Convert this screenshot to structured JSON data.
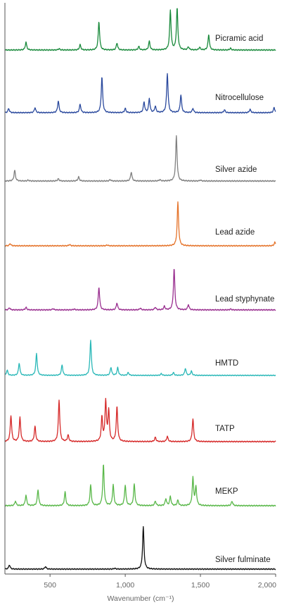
{
  "chart_data": {
    "type": "line",
    "title": "",
    "xlabel": "Wavenumber (cm⁻¹)",
    "ylabel": "",
    "xlim": [
      200,
      2000
    ],
    "xticks": [
      {
        "value": 500,
        "label": "500"
      },
      {
        "value": 1000,
        "label": "1,000"
      },
      {
        "value": 1500,
        "label": "1,500"
      },
      {
        "value": 2000,
        "label": "2,000"
      }
    ],
    "grid": false,
    "legend": "none",
    "series": [
      {
        "name": "Picramic acid",
        "color": "#1a8a3c",
        "peaks": [
          [
            340,
            0.18
          ],
          [
            560,
            0.03
          ],
          [
            700,
            0.12
          ],
          [
            825,
            0.65
          ],
          [
            945,
            0.16
          ],
          [
            1090,
            0.08
          ],
          [
            1160,
            0.2
          ],
          [
            1300,
            0.9
          ],
          [
            1345,
            0.96
          ],
          [
            1420,
            0.07
          ],
          [
            1495,
            0.06
          ],
          [
            1555,
            0.35
          ],
          [
            1700,
            0.04
          ]
        ]
      },
      {
        "name": "Nitrocellulose",
        "color": "#2b4a9e",
        "peaks": [
          [
            225,
            0.1
          ],
          [
            400,
            0.12
          ],
          [
            555,
            0.28
          ],
          [
            700,
            0.2
          ],
          [
            845,
            0.85
          ],
          [
            1000,
            0.1
          ],
          [
            1125,
            0.25
          ],
          [
            1160,
            0.33
          ],
          [
            1200,
            0.15
          ],
          [
            1280,
            0.93
          ],
          [
            1370,
            0.42
          ],
          [
            1450,
            0.1
          ],
          [
            1660,
            0.07
          ],
          [
            1830,
            0.08
          ],
          [
            1990,
            0.12
          ]
        ]
      },
      {
        "name": "Silver azide",
        "color": "#808080",
        "peaks": [
          [
            265,
            0.24
          ],
          [
            355,
            0.02
          ],
          [
            555,
            0.05
          ],
          [
            690,
            0.09
          ],
          [
            900,
            0.03
          ],
          [
            1040,
            0.2
          ],
          [
            1230,
            0.03
          ],
          [
            1340,
            1.0
          ],
          [
            1500,
            0.02
          ]
        ]
      },
      {
        "name": "Lead azide",
        "color": "#e5732a",
        "peaks": [
          [
            235,
            0.05
          ],
          [
            630,
            0.03
          ],
          [
            880,
            0.02
          ],
          [
            1350,
            1.0
          ],
          [
            1995,
            0.08
          ]
        ]
      },
      {
        "name": "Lead styphynate",
        "color": "#9a3090",
        "peaks": [
          [
            230,
            0.05
          ],
          [
            340,
            0.06
          ],
          [
            520,
            0.03
          ],
          [
            660,
            0.02
          ],
          [
            825,
            0.52
          ],
          [
            945,
            0.16
          ],
          [
            1100,
            0.04
          ],
          [
            1200,
            0.06
          ],
          [
            1260,
            0.08
          ],
          [
            1325,
            0.95
          ],
          [
            1420,
            0.12
          ],
          [
            1700,
            0.02
          ]
        ]
      },
      {
        "name": "HMTD",
        "color": "#2ab8b8",
        "peaks": [
          [
            215,
            0.15
          ],
          [
            295,
            0.35
          ],
          [
            410,
            0.62
          ],
          [
            580,
            0.3
          ],
          [
            770,
            1.0
          ],
          [
            905,
            0.23
          ],
          [
            950,
            0.22
          ],
          [
            1020,
            0.08
          ],
          [
            1240,
            0.05
          ],
          [
            1320,
            0.08
          ],
          [
            1400,
            0.2
          ],
          [
            1440,
            0.12
          ]
        ]
      },
      {
        "name": "TATP",
        "color": "#d62a2a",
        "peaks": [
          [
            240,
            0.6
          ],
          [
            300,
            0.55
          ],
          [
            400,
            0.35
          ],
          [
            560,
            0.95
          ],
          [
            620,
            0.15
          ],
          [
            845,
            0.55
          ],
          [
            870,
            0.92
          ],
          [
            890,
            0.7
          ],
          [
            945,
            0.8
          ],
          [
            1200,
            0.1
          ],
          [
            1280,
            0.12
          ],
          [
            1450,
            0.52
          ]
        ]
      },
      {
        "name": "MEKP",
        "color": "#5ab84a",
        "peaks": [
          [
            270,
            0.1
          ],
          [
            340,
            0.23
          ],
          [
            420,
            0.35
          ],
          [
            600,
            0.3
          ],
          [
            770,
            0.45
          ],
          [
            855,
            0.9
          ],
          [
            920,
            0.45
          ],
          [
            1000,
            0.45
          ],
          [
            1060,
            0.47
          ],
          [
            1200,
            0.1
          ],
          [
            1270,
            0.15
          ],
          [
            1300,
            0.2
          ],
          [
            1350,
            0.12
          ],
          [
            1450,
            0.6
          ],
          [
            1470,
            0.4
          ],
          [
            1710,
            0.1
          ]
        ]
      },
      {
        "name": "Silver fulminate",
        "color": "#111111",
        "peaks": [
          [
            230,
            0.1
          ],
          [
            470,
            0.06
          ],
          [
            930,
            0.02
          ],
          [
            1120,
            1.0
          ]
        ]
      }
    ]
  }
}
